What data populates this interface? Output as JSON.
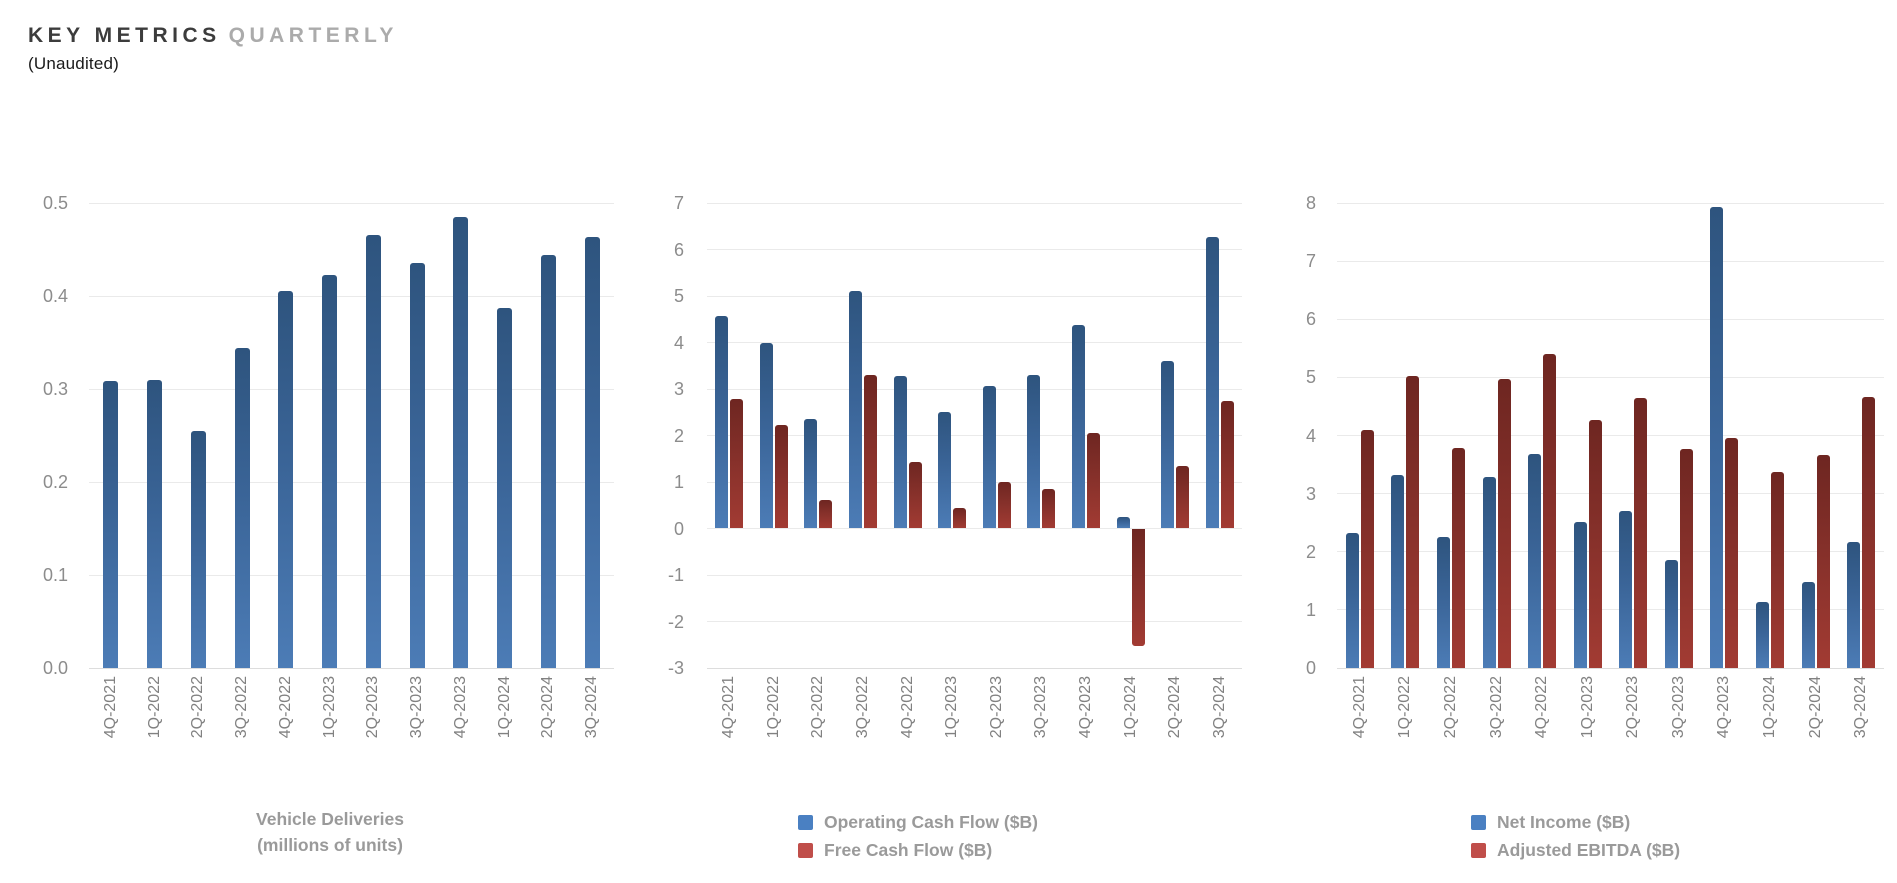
{
  "header": {
    "title_primary": "KEY METRICS",
    "title_secondary": "QUARTERLY",
    "subtitle": "(Unaudited)"
  },
  "colors": {
    "bar_blue_top": "#2e547e",
    "bar_blue_bottom": "#4c7cb6",
    "bar_red_top": "#6e2621",
    "bar_red_bottom": "#a23b33",
    "legend_blue": "#4a80c2",
    "legend_red": "#c04e4a",
    "axis_text": "#8c8c8c",
    "gridline": "#eaeaea"
  },
  "chart_data": [
    {
      "id": "vehicle-deliveries",
      "type": "bar",
      "title": "Vehicle Deliveries",
      "caption_lines": [
        "Vehicle Deliveries",
        "(millions of units)"
      ],
      "categories": [
        "4Q-2021",
        "1Q-2022",
        "2Q-2022",
        "3Q-2022",
        "4Q-2022",
        "1Q-2023",
        "2Q-2023",
        "3Q-2023",
        "4Q-2023",
        "1Q-2024",
        "2Q-2024",
        "3Q-2024"
      ],
      "series": [
        {
          "name": "Vehicle Deliveries (millions of units)",
          "color": "blue",
          "values": [
            0.309,
            0.31,
            0.255,
            0.344,
            0.405,
            0.423,
            0.466,
            0.435,
            0.485,
            0.387,
            0.444,
            0.463
          ]
        }
      ],
      "ylim": [
        0,
        0.5
      ],
      "ystep": 0.1,
      "ydecimals": 1,
      "grid": true,
      "legend_position": "none"
    },
    {
      "id": "cash-flow",
      "type": "bar",
      "title": "Cash Flow",
      "caption_lines": [],
      "categories": [
        "4Q-2021",
        "1Q-2022",
        "2Q-2022",
        "3Q-2022",
        "4Q-2022",
        "1Q-2023",
        "2Q-2023",
        "3Q-2023",
        "4Q-2023",
        "1Q-2024",
        "2Q-2024",
        "3Q-2024"
      ],
      "series": [
        {
          "name": "Operating Cash Flow ($B)",
          "color": "blue",
          "values": [
            4.58,
            3.99,
            2.35,
            5.1,
            3.28,
            2.51,
            3.06,
            3.31,
            4.37,
            0.24,
            3.61,
            6.26
          ]
        },
        {
          "name": "Free Cash Flow ($B)",
          "color": "red",
          "values": [
            2.78,
            2.23,
            0.62,
            3.3,
            1.42,
            0.44,
            1.01,
            0.85,
            2.06,
            -2.53,
            1.34,
            2.74
          ]
        }
      ],
      "ylim": [
        -3,
        7
      ],
      "ystep": 1,
      "ydecimals": 0,
      "grid": true,
      "legend_position": "bottom"
    },
    {
      "id": "profitability",
      "type": "bar",
      "title": "Profitability",
      "caption_lines": [],
      "categories": [
        "4Q-2021",
        "1Q-2022",
        "2Q-2022",
        "3Q-2022",
        "4Q-2022",
        "1Q-2023",
        "2Q-2023",
        "3Q-2023",
        "4Q-2023",
        "1Q-2024",
        "2Q-2024",
        "3Q-2024"
      ],
      "series": [
        {
          "name": "Net Income ($B)",
          "color": "blue",
          "values": [
            2.32,
            3.32,
            2.26,
            3.29,
            3.69,
            2.51,
            2.7,
            1.85,
            7.93,
            1.13,
            1.48,
            2.17
          ]
        },
        {
          "name": "Adjusted EBITDA ($B)",
          "color": "red",
          "values": [
            4.09,
            5.02,
            3.79,
            4.97,
            5.4,
            4.27,
            4.65,
            3.76,
            3.95,
            3.38,
            3.67,
            4.67
          ]
        }
      ],
      "ylim": [
        0,
        8
      ],
      "ystep": 1,
      "ydecimals": 0,
      "grid": true,
      "legend_position": "bottom"
    }
  ]
}
